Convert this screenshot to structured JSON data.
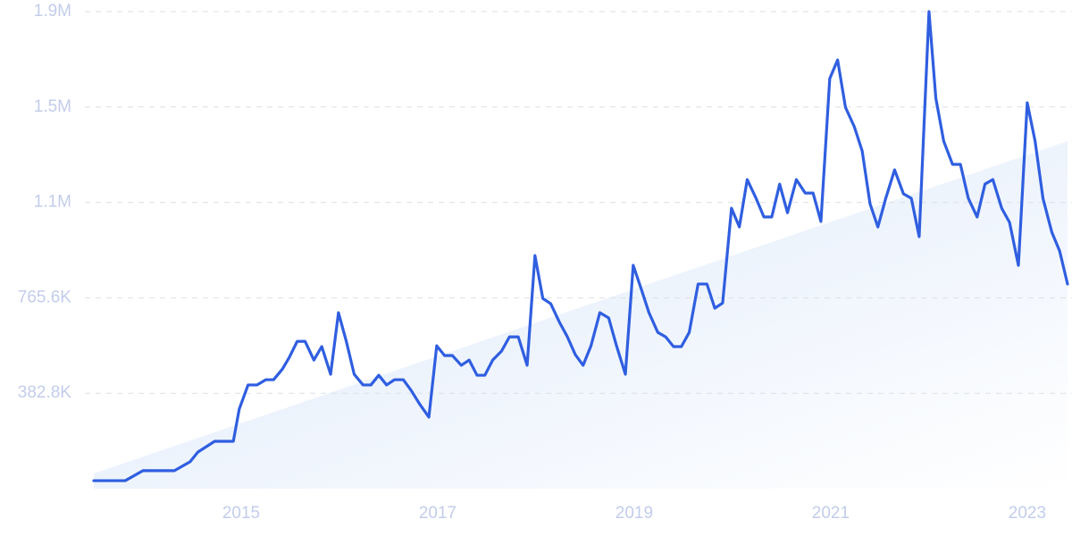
{
  "chart_data": {
    "type": "line",
    "x": [
      2013.5,
      2013.82,
      2014.0,
      2014.32,
      2014.48,
      2014.56,
      2014.73,
      2014.92,
      2014.98,
      2015.07,
      2015.16,
      2015.25,
      2015.33,
      2015.42,
      2015.49,
      2015.57,
      2015.65,
      2015.74,
      2015.82,
      2015.91,
      2015.99,
      2016.07,
      2016.15,
      2016.24,
      2016.32,
      2016.4,
      2016.48,
      2016.56,
      2016.65,
      2016.73,
      2016.82,
      2016.91,
      2016.99,
      2017.07,
      2017.15,
      2017.24,
      2017.32,
      2017.4,
      2017.48,
      2017.56,
      2017.65,
      2017.73,
      2017.82,
      2017.91,
      2017.99,
      2018.07,
      2018.15,
      2018.24,
      2018.32,
      2018.4,
      2018.48,
      2018.56,
      2018.65,
      2018.74,
      2018.82,
      2018.91,
      2018.99,
      2019.07,
      2019.15,
      2019.24,
      2019.32,
      2019.4,
      2019.48,
      2019.56,
      2019.65,
      2019.74,
      2019.82,
      2019.9,
      2019.99,
      2020.07,
      2020.15,
      2020.24,
      2020.32,
      2020.4,
      2020.48,
      2020.56,
      2020.65,
      2020.74,
      2020.82,
      2020.9,
      2020.99,
      2021.07,
      2021.15,
      2021.24,
      2021.32,
      2021.4,
      2021.48,
      2021.56,
      2021.65,
      2021.74,
      2021.82,
      2021.9,
      2022.0,
      2022.07,
      2022.15,
      2022.24,
      2022.32,
      2022.4,
      2022.49,
      2022.57,
      2022.65,
      2022.74,
      2022.82,
      2022.91,
      2023.0,
      2023.08,
      2023.16,
      2023.25,
      2023.33,
      2023.41
    ],
    "series": [
      {
        "color": "#2f5ee0",
        "values": [
          32000,
          32000,
          72000,
          72000,
          108000,
          147000,
          190000,
          190000,
          319000,
          416000,
          416000,
          437000,
          437000,
          480000,
          527000,
          591000,
          591000,
          516000,
          570000,
          459000,
          706000,
          591000,
          459000,
          416000,
          416000,
          455000,
          416000,
          437000,
          437000,
          394000,
          337000,
          287000,
          573000,
          534000,
          534000,
          495000,
          516000,
          455000,
          455000,
          516000,
          552000,
          609000,
          609000,
          495000,
          935000,
          763000,
          742000,
          667000,
          609000,
          538000,
          495000,
          573000,
          706000,
          685000,
          573000,
          459000,
          896000,
          803000,
          706000,
          627000,
          609000,
          570000,
          570000,
          627000,
          821000,
          821000,
          724000,
          745000,
          1125000,
          1050000,
          1240000,
          1165000,
          1090000,
          1090000,
          1222000,
          1107000,
          1240000,
          1186000,
          1186000,
          1072000,
          1645000,
          1720000,
          1530000,
          1452000,
          1355000,
          1143000,
          1050000,
          1165000,
          1279000,
          1183000,
          1165000,
          1011000,
          1914000,
          1566000,
          1394000,
          1301000,
          1301000,
          1165000,
          1090000,
          1222000,
          1240000,
          1125000,
          1068000,
          896000,
          1548000,
          1394000,
          1165000,
          1029000,
          953000,
          821000
        ]
      }
    ],
    "xlim": [
      2013.5,
      2023.41
    ],
    "xticks": [
      2015,
      2017,
      2019,
      2021,
      2023
    ],
    "ylim": [
      0,
      1914000
    ],
    "yticks": [
      {
        "value": 382800,
        "label": "382.8K"
      },
      {
        "value": 765600,
        "label": "765.6K"
      },
      {
        "value": 1148400,
        "label": "1.1M"
      },
      {
        "value": 1531200,
        "label": "1.5M"
      },
      {
        "value": 1914000,
        "label": "1.9M"
      }
    ],
    "grid": true
  }
}
